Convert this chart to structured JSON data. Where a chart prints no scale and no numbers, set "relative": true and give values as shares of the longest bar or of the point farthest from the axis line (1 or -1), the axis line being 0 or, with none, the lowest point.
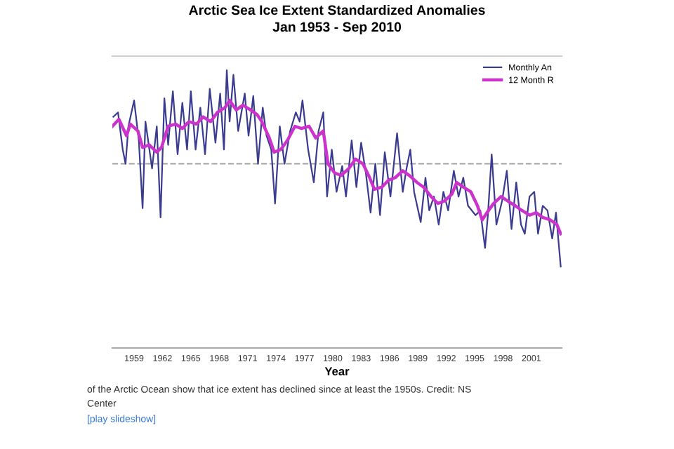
{
  "chart_data": {
    "type": "line",
    "title": "Arctic Sea Ice Extent Standardized Anomalies",
    "subtitle": "Jan 1953 - Sep 2010",
    "xlabel": "Year",
    "relative": true,
    "xlim": [
      1956.7,
      2004.2
    ],
    "xticks": [
      1959,
      1962,
      1965,
      1968,
      1971,
      1974,
      1977,
      1980,
      1983,
      1986,
      1989,
      1992,
      1995,
      1998,
      2001
    ],
    "grid": false,
    "legend": "top right",
    "marker": "none",
    "tick_labels": "x",
    "ref_lines": [
      {
        "axis": "y",
        "value": 0.663,
        "color": "#aaaaaa",
        "line_style": "dashed"
      }
    ],
    "series": [
      {
        "name": "Monthly An",
        "color": "#3b3b8f",
        "x": [
          1956.8,
          1957.3,
          1957.8,
          1958.1,
          1958.4,
          1959.0,
          1959.5,
          1959.9,
          1960.2,
          1960.9,
          1961.4,
          1961.8,
          1962.2,
          1962.6,
          1963.1,
          1963.6,
          1964.1,
          1964.6,
          1965.0,
          1965.5,
          1966.0,
          1966.5,
          1967.0,
          1967.6,
          1968.1,
          1968.5,
          1968.8,
          1969.1,
          1969.5,
          1970.0,
          1970.7,
          1971.1,
          1971.6,
          1972.1,
          1972.6,
          1973.0,
          1973.5,
          1973.9,
          1974.4,
          1974.9,
          1975.5,
          1976.1,
          1976.5,
          1976.8,
          1977.4,
          1978.0,
          1978.5,
          1979.0,
          1979.4,
          1979.9,
          1980.4,
          1981.0,
          1981.4,
          1982.0,
          1982.5,
          1983.0,
          1983.5,
          1984.0,
          1984.5,
          1985.0,
          1985.5,
          1986.1,
          1986.8,
          1987.4,
          1987.8,
          1988.2,
          1988.6,
          1989.3,
          1989.8,
          1990.2,
          1990.7,
          1991.2,
          1991.7,
          1992.2,
          1992.8,
          1993.3,
          1993.8,
          1994.3,
          1995.1,
          1995.6,
          1996.1,
          1996.4,
          1996.8,
          1997.3,
          1997.9,
          1998.4,
          1998.9,
          1999.4,
          1999.9,
          2000.3,
          2000.8,
          2001.3,
          2001.7,
          2002.2,
          2002.7,
          2003.2,
          2003.6,
          2004.1
        ],
        "values": [
          0.832,
          0.848,
          0.714,
          0.663,
          0.798,
          0.891,
          0.747,
          0.503,
          0.815,
          0.646,
          0.798,
          0.47,
          0.899,
          0.731,
          0.924,
          0.697,
          0.882,
          0.714,
          0.924,
          0.714,
          0.865,
          0.697,
          0.933,
          0.739,
          0.916,
          0.714,
          1.0,
          0.815,
          0.983,
          0.781,
          0.916,
          0.764,
          0.907,
          0.663,
          0.865,
          0.764,
          0.714,
          0.52,
          0.798,
          0.663,
          0.781,
          0.848,
          0.815,
          0.891,
          0.714,
          0.596,
          0.781,
          0.848,
          0.545,
          0.714,
          0.562,
          0.655,
          0.545,
          0.747,
          0.579,
          0.739,
          0.63,
          0.487,
          0.663,
          0.478,
          0.705,
          0.545,
          0.773,
          0.562,
          0.646,
          0.714,
          0.562,
          0.453,
          0.613,
          0.495,
          0.545,
          0.444,
          0.562,
          0.495,
          0.638,
          0.545,
          0.613,
          0.512,
          0.478,
          0.495,
          0.36,
          0.478,
          0.697,
          0.444,
          0.529,
          0.638,
          0.428,
          0.596,
          0.444,
          0.411,
          0.545,
          0.562,
          0.411,
          0.512,
          0.495,
          0.394,
          0.487,
          0.293
        ]
      },
      {
        "name": "12 Month R",
        "color": "#cc33cc",
        "x": [
          1956.7,
          1957.4,
          1958.2,
          1958.6,
          1959.4,
          1959.9,
          1960.6,
          1961.4,
          1961.9,
          1962.6,
          1963.4,
          1964.1,
          1964.8,
          1965.6,
          1966.3,
          1967.1,
          1967.8,
          1968.6,
          1969.1,
          1969.8,
          1970.5,
          1971.3,
          1972.0,
          1972.5,
          1973.3,
          1973.8,
          1974.5,
          1975.2,
          1976.0,
          1976.7,
          1977.5,
          1978.2,
          1979.0,
          1979.5,
          1980.2,
          1980.9,
          1981.7,
          1982.4,
          1983.2,
          1983.9,
          1984.4,
          1985.2,
          1985.9,
          1986.6,
          1987.4,
          1988.1,
          1988.9,
          1989.6,
          1990.4,
          1991.1,
          1991.8,
          1992.6,
          1993.1,
          1993.8,
          1994.6,
          1995.3,
          1995.8,
          1996.3,
          1997.0,
          1997.8,
          1998.5,
          1999.3,
          2000.0,
          2000.8,
          2001.5,
          2002.2,
          2003.0,
          2003.7,
          2004.1
        ],
        "values": [
          0.798,
          0.823,
          0.764,
          0.806,
          0.781,
          0.722,
          0.731,
          0.705,
          0.722,
          0.798,
          0.806,
          0.79,
          0.815,
          0.806,
          0.832,
          0.815,
          0.848,
          0.865,
          0.891,
          0.857,
          0.874,
          0.857,
          0.84,
          0.815,
          0.756,
          0.705,
          0.714,
          0.747,
          0.798,
          0.79,
          0.798,
          0.756,
          0.781,
          0.663,
          0.63,
          0.621,
          0.646,
          0.68,
          0.663,
          0.613,
          0.571,
          0.579,
          0.604,
          0.613,
          0.638,
          0.621,
          0.596,
          0.579,
          0.545,
          0.52,
          0.529,
          0.554,
          0.596,
          0.579,
          0.562,
          0.512,
          0.461,
          0.487,
          0.52,
          0.545,
          0.529,
          0.512,
          0.495,
          0.478,
          0.487,
          0.47,
          0.461,
          0.444,
          0.411
        ]
      }
    ],
    "annotations": [
      "of the Arctic Ocean show that ice extent has declined since at least the 1950s. Credit: NS",
      "Center",
      "[play slideshow]"
    ]
  }
}
